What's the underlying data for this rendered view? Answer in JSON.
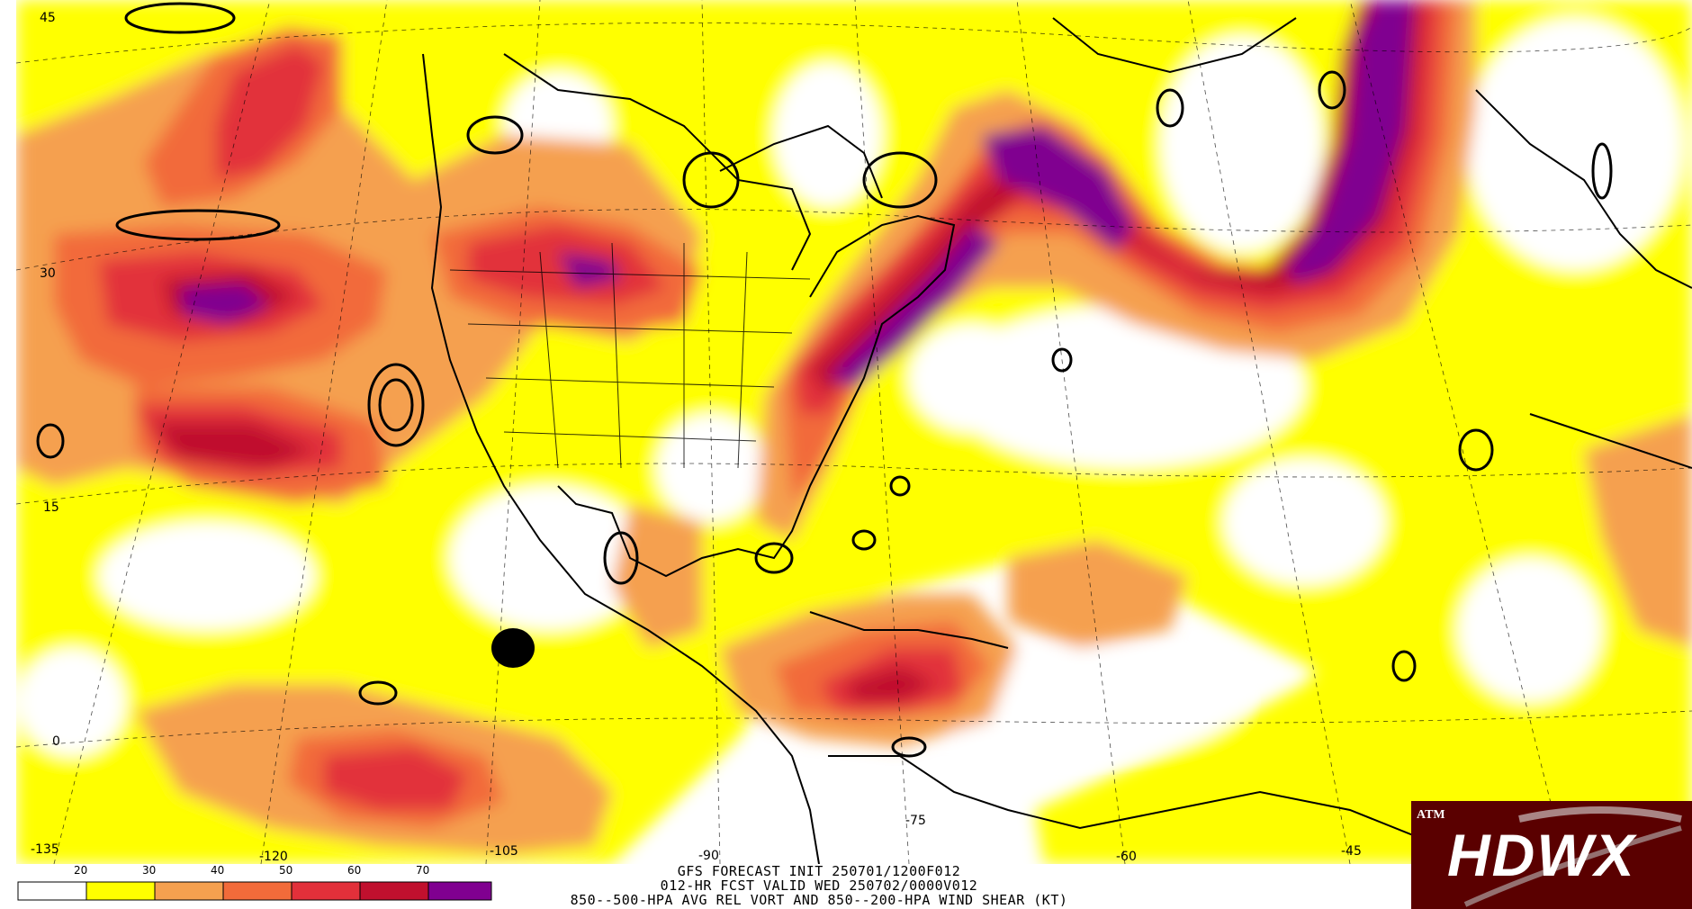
{
  "map": {
    "longitude_labels": [
      "-135",
      "-120",
      "-105",
      "-90",
      "-75",
      "-60",
      "-45"
    ],
    "latitude_labels": [
      "45",
      "30",
      "15",
      "0"
    ]
  },
  "legend": {
    "values": [
      "20",
      "30",
      "40",
      "50",
      "60",
      "70"
    ],
    "colors": [
      "#ffffff",
      "#ffff00",
      "#f5a04f",
      "#f26b3a",
      "#e2303a",
      "#c0102e",
      "#800090"
    ]
  },
  "caption": {
    "line1": "GFS FORECAST INIT 250701/1200F012",
    "line2": "012-HR FCST VALID WED 250702/0000V012",
    "line3": "850--500-HPA AVG REL VORT AND 850--200-HPA WIND SHEAR (KT)"
  },
  "logo": {
    "text": "HDWX",
    "mark": "ATM"
  }
}
